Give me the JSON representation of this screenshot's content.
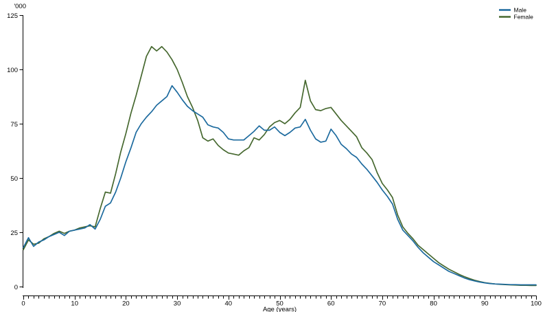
{
  "chart_data": {
    "type": "line",
    "title": "",
    "ylabel": "'000",
    "xlabel": "Age (years)",
    "x_start": 0,
    "x_step": 1,
    "x_range": [
      0,
      100
    ],
    "y_range": [
      0,
      125
    ],
    "y_ticks": [
      0,
      25,
      50,
      75,
      100,
      125
    ],
    "x_major_ticks": [
      0,
      10,
      20,
      30,
      40,
      50,
      60,
      70,
      80,
      90,
      100
    ],
    "x_minor_tick_step": 1,
    "grid": false,
    "axis_color": "#000000",
    "legend": {
      "position": "top-right",
      "entries": [
        "Male",
        "Female"
      ]
    },
    "series": [
      {
        "name": "Male",
        "color": "#1c6a9e",
        "values": [
          18,
          22.5,
          18.5,
          20.5,
          21.5,
          23,
          24,
          25,
          23.5,
          25.5,
          26,
          26.5,
          27,
          28.5,
          26.5,
          31,
          37,
          38.5,
          43.5,
          50,
          57.5,
          64,
          71,
          75,
          78,
          80.5,
          83.5,
          85.5,
          87.5,
          92.5,
          89.5,
          86,
          83,
          81,
          79.5,
          78,
          74.5,
          73.5,
          73,
          71,
          68,
          67.5,
          67.5,
          67.5,
          69.5,
          71.5,
          74,
          72,
          72,
          73.5,
          71,
          69.5,
          71,
          73,
          73.5,
          77,
          72,
          68,
          66.5,
          67,
          72.5,
          69.5,
          65.5,
          63.5,
          61,
          59.5,
          56.5,
          54,
          51,
          48,
          44.5,
          41.5,
          38,
          31,
          26,
          23.5,
          21,
          18,
          15.5,
          13.5,
          11.5,
          10,
          8.5,
          7,
          6,
          5,
          4,
          3.2,
          2.6,
          2.1,
          1.7,
          1.4,
          1.2,
          1.1,
          1,
          0.9,
          0.9,
          0.8,
          0.8,
          0.8,
          0.8
        ]
      },
      {
        "name": "Female",
        "color": "#46682f",
        "values": [
          17,
          21.5,
          19.5,
          20,
          22,
          23,
          24.5,
          25.5,
          24.5,
          25.5,
          26,
          27,
          27.5,
          28,
          27.5,
          36,
          43.5,
          43,
          52,
          62,
          70.5,
          80,
          88,
          97,
          106,
          110.5,
          108.5,
          110.5,
          108,
          104.5,
          100,
          94,
          87.5,
          82.5,
          76.5,
          68.5,
          67,
          68,
          65,
          63,
          61.5,
          61,
          60.5,
          62.5,
          64,
          68.5,
          67.5,
          70,
          73.5,
          75.5,
          76.5,
          75,
          77,
          80,
          82.5,
          95,
          85.5,
          81.5,
          81,
          82,
          82.5,
          79.5,
          76.5,
          74,
          71.5,
          69,
          64,
          61.5,
          58.5,
          52.5,
          47.5,
          44.5,
          41,
          33,
          27.5,
          24.5,
          22,
          19,
          17,
          15,
          13,
          11,
          9.5,
          8,
          6.8,
          5.6,
          4.6,
          3.7,
          2.9,
          2.3,
          1.8,
          1.5,
          1.2,
          1,
          0.9,
          0.8,
          0.7,
          0.6,
          0.6,
          0.5,
          0.5
        ]
      }
    ]
  }
}
